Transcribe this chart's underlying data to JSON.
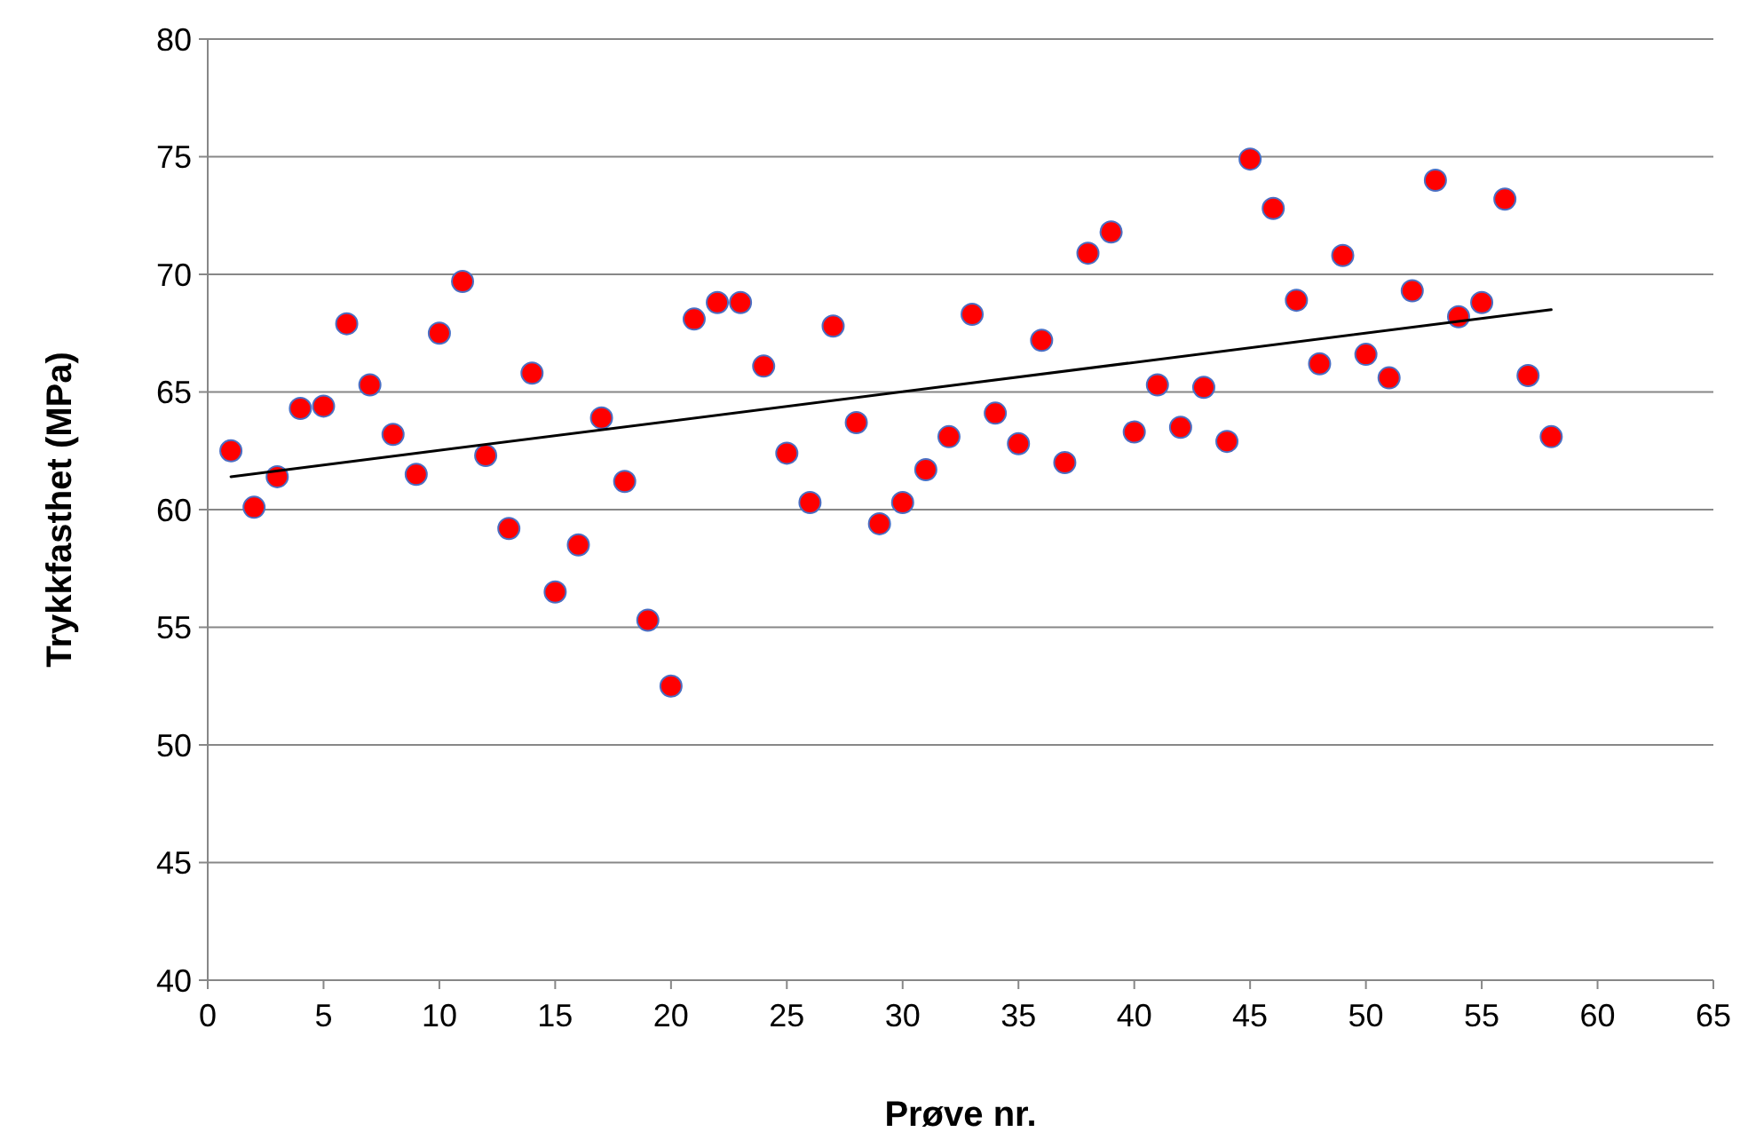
{
  "chart_data": {
    "type": "scatter",
    "xlabel": "Prøve nr.",
    "ylabel": "Trykkfasthet (MPa)",
    "xlim": [
      0,
      65
    ],
    "xticks": [
      0,
      5,
      10,
      15,
      20,
      25,
      30,
      35,
      40,
      45,
      50,
      55,
      60,
      65
    ],
    "ylim": [
      40,
      80
    ],
    "yticks": [
      40,
      45,
      50,
      55,
      60,
      65,
      70,
      75,
      80
    ],
    "grid": "y",
    "marker": "circle",
    "x": [
      1,
      2,
      3,
      4,
      5,
      6,
      7,
      8,
      9,
      10,
      11,
      12,
      13,
      14,
      15,
      16,
      17,
      18,
      19,
      20,
      21,
      22,
      23,
      24,
      25,
      26,
      27,
      28,
      29,
      30,
      31,
      32,
      33,
      34,
      35,
      36,
      37,
      38,
      39,
      40,
      41,
      42,
      43,
      44,
      45,
      46,
      47,
      48,
      49,
      50,
      51,
      52,
      53,
      54,
      55,
      56,
      57,
      58
    ],
    "series": [
      {
        "color": "#ff0000",
        "values": [
          62.5,
          60.1,
          61.4,
          64.3,
          64.4,
          67.9,
          65.3,
          63.2,
          61.5,
          67.5,
          69.7,
          62.3,
          59.2,
          65.8,
          56.5,
          58.5,
          63.9,
          61.2,
          55.3,
          52.5,
          68.1,
          68.8,
          68.8,
          66.1,
          62.4,
          60.3,
          67.8,
          63.7,
          59.4,
          60.3,
          61.7,
          63.1,
          68.3,
          64.1,
          62.8,
          67.2,
          62.0,
          70.9,
          71.8,
          63.3,
          65.3,
          63.5,
          65.2,
          62.9,
          74.9,
          72.8,
          68.9,
          66.2,
          70.8,
          66.6,
          65.6,
          69.3,
          74.0,
          68.2,
          68.8,
          73.2,
          65.7,
          63.1
        ]
      },
      {
        "type": "line",
        "color": "#000000",
        "marker": "none",
        "line_style": "solid",
        "x": [
          1,
          58
        ],
        "values": [
          61.4,
          68.5
        ]
      }
    ]
  }
}
